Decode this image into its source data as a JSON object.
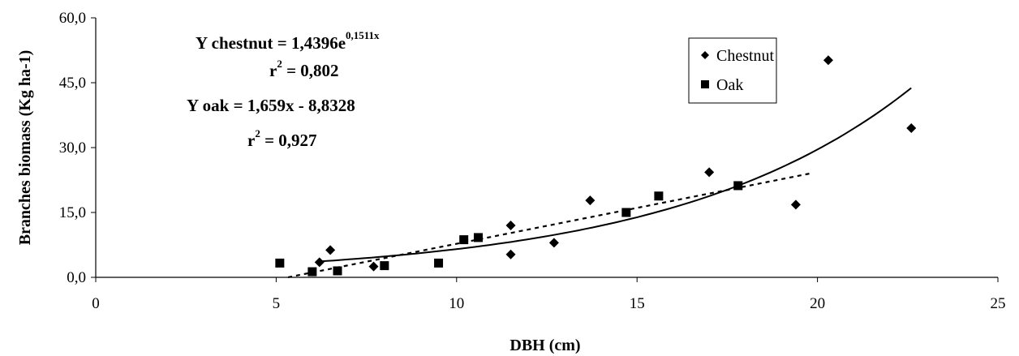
{
  "chart_data": {
    "type": "scatter",
    "xlabel": "DBH (cm)",
    "ylabel": "Branches biomass (Kg ha-1)",
    "xlim": [
      0,
      25
    ],
    "ylim": [
      0,
      60
    ],
    "x_ticks": [
      0,
      5,
      10,
      15,
      20,
      25
    ],
    "x_tick_labels": [
      "0",
      "5",
      "10",
      "15",
      "20",
      "25"
    ],
    "y_ticks": [
      0,
      15,
      30,
      45,
      60
    ],
    "y_tick_labels": [
      "0,0",
      "15,0",
      "30,0",
      "45,0",
      "60,0"
    ],
    "grid": false,
    "legend_position": "top-right",
    "series": [
      {
        "name": "Chestnut",
        "marker": "diamond",
        "color": "#000000",
        "x": [
          6.2,
          6.5,
          7.7,
          11.5,
          11.5,
          12.7,
          13.7,
          17.0,
          19.4,
          20.3,
          22.6
        ],
        "y": [
          3.5,
          6.3,
          2.5,
          5.3,
          12.0,
          8.0,
          17.8,
          24.3,
          16.8,
          50.2,
          34.5
        ],
        "trend": {
          "type": "exponential",
          "a": 1.4396,
          "b": 0.1511,
          "x_range": [
            6.2,
            22.6
          ],
          "style": "solid"
        }
      },
      {
        "name": "Oak",
        "marker": "square",
        "color": "#000000",
        "x": [
          5.1,
          6.0,
          6.7,
          8.0,
          9.5,
          10.2,
          10.6,
          14.7,
          15.6,
          17.8
        ],
        "y": [
          3.3,
          1.3,
          1.5,
          2.7,
          3.3,
          8.7,
          9.2,
          15.0,
          18.8,
          21.2
        ],
        "trend": {
          "type": "linear",
          "slope": 1.659,
          "intercept": -8.8328,
          "x_range": [
            5.33,
            19.8
          ],
          "style": "dashed"
        }
      }
    ],
    "annotations": {
      "eq_chestnut_prefix": "Y chestnut = 1,4396e",
      "eq_chestnut_exp": "0,1511x",
      "r2_chestnut_prefix": "r",
      "r2_chestnut_sup": "2",
      "r2_chestnut_value": " = 0,802",
      "eq_oak": "Y oak = 1,659x - 8,8328",
      "r2_oak_prefix": "r",
      "r2_oak_sup": "2",
      "r2_oak_value": " = 0,927"
    }
  }
}
